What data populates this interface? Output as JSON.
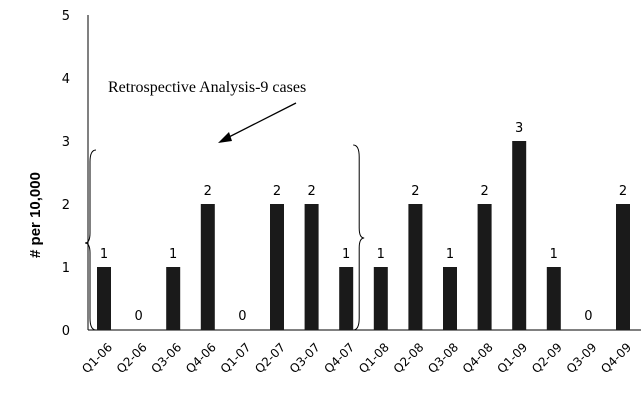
{
  "chart_data": {
    "type": "bar",
    "categories": [
      "Q1-06",
      "Q2-06",
      "Q3-06",
      "Q4-06",
      "Q1-07",
      "Q2-07",
      "Q3-07",
      "Q4-07",
      "Q1-08",
      "Q2-08",
      "Q3-08",
      "Q4-08",
      "Q1-09",
      "Q2-09",
      "Q3-09",
      "Q4-09"
    ],
    "values": [
      1,
      0,
      1,
      2,
      0,
      2,
      2,
      1,
      1,
      2,
      1,
      2,
      3,
      1,
      0,
      2
    ],
    "data_labels": [
      "1",
      "0",
      "1",
      "2",
      "0",
      "2",
      "2",
      "1",
      "1",
      "2",
      "1",
      "2",
      "3",
      "1",
      "0",
      "2"
    ],
    "title": "",
    "xlabel": "",
    "ylabel": "# per 10,000",
    "ylim": [
      0,
      5
    ],
    "yticks": [
      "0",
      "1",
      "2",
      "3",
      "4",
      "5"
    ],
    "grid": false,
    "bar_color": "#1a1a1a",
    "annotation": {
      "text": "Retrospective Analysis-9 cases",
      "bracket_first_category": "Q1-06",
      "bracket_last_category": "Q4-07"
    }
  }
}
